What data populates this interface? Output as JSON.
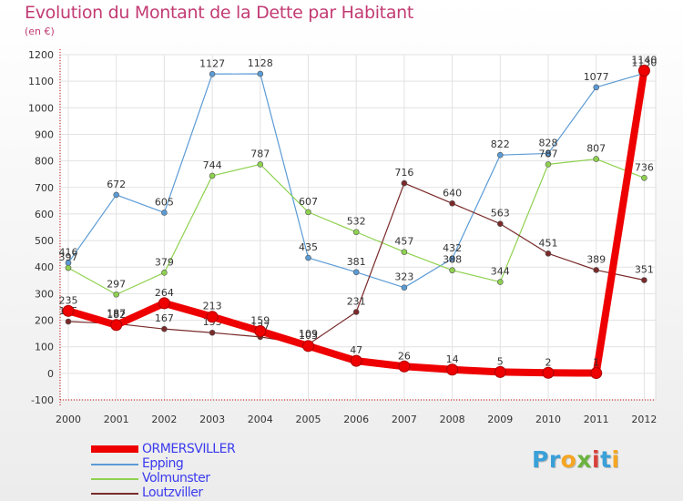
{
  "title": "Evolution du Montant de la Dette par Habitant",
  "unit": "(en €)",
  "logo": {
    "text": "Proxiti",
    "letters": [
      {
        "ch": "P",
        "color": "#39a0d8"
      },
      {
        "ch": "r",
        "color": "#39a0d8"
      },
      {
        "ch": "o",
        "color": "#f5a623"
      },
      {
        "ch": "x",
        "color": "#6ab33e"
      },
      {
        "ch": "i",
        "color": "#d9403a"
      },
      {
        "ch": "t",
        "color": "#39a0d8"
      },
      {
        "ch": "i",
        "color": "#f5a623"
      }
    ]
  },
  "chart_data": {
    "type": "line",
    "title": "Evolution du Montant de la Dette par Habitant",
    "ylabel": "(en €)",
    "xlabel": "",
    "categories": [
      "2000",
      "2001",
      "2002",
      "2003",
      "2004",
      "2005",
      "2006",
      "2007",
      "2008",
      "2009",
      "2010",
      "2011",
      "2012"
    ],
    "ylim": [
      -100,
      1200
    ],
    "yticks": [
      -100,
      0,
      100,
      200,
      300,
      400,
      500,
      600,
      700,
      800,
      900,
      1000,
      1100,
      1200
    ],
    "grid": true,
    "legend_position": "bottom-left",
    "series": [
      {
        "name": "ORMERSVILLER",
        "color": "#ee0000",
        "labelColor": "#333333",
        "emphasis": true,
        "values": [
          235,
          182,
          264,
          213,
          159,
          103,
          47,
          26,
          14,
          5,
          2,
          1,
          1140
        ],
        "labels": [
          "235",
          "182",
          "264",
          "213",
          "159",
          "103",
          "47",
          "26",
          "14",
          "5",
          "2",
          "1",
          "1140"
        ]
      },
      {
        "name": "Epping",
        "color": "#5b9bd5",
        "labelColor": "#333333",
        "values": [
          416,
          672,
          605,
          1127,
          1128,
          435,
          381,
          323,
          432,
          822,
          828,
          1077,
          1130
        ],
        "labels": [
          "416",
          "672",
          "605",
          "1127",
          "1128",
          "435",
          "381",
          "323",
          "432",
          "822",
          "828",
          "1077",
          "1130"
        ]
      },
      {
        "name": "Volmunster",
        "color": "#8fd14f",
        "labelColor": "#333333",
        "values": [
          397,
          297,
          379,
          744,
          787,
          607,
          532,
          457,
          388,
          344,
          787,
          807,
          736
        ],
        "labels": [
          "397",
          "297",
          "379",
          "744",
          "787",
          "607",
          "532",
          "457",
          "388",
          "344",
          "787",
          "807",
          "736"
        ]
      },
      {
        "name": "Loutzviller",
        "color": "#7a2a2a",
        "labelColor": "#333333",
        "values": [
          195,
          187,
          167,
          153,
          137,
          109,
          231,
          716,
          640,
          563,
          451,
          389,
          351
        ],
        "labels": [
          "195",
          "187",
          "167",
          "153",
          "137",
          "109",
          "231",
          "716",
          "640",
          "563",
          "451",
          "389",
          "351"
        ]
      }
    ]
  }
}
